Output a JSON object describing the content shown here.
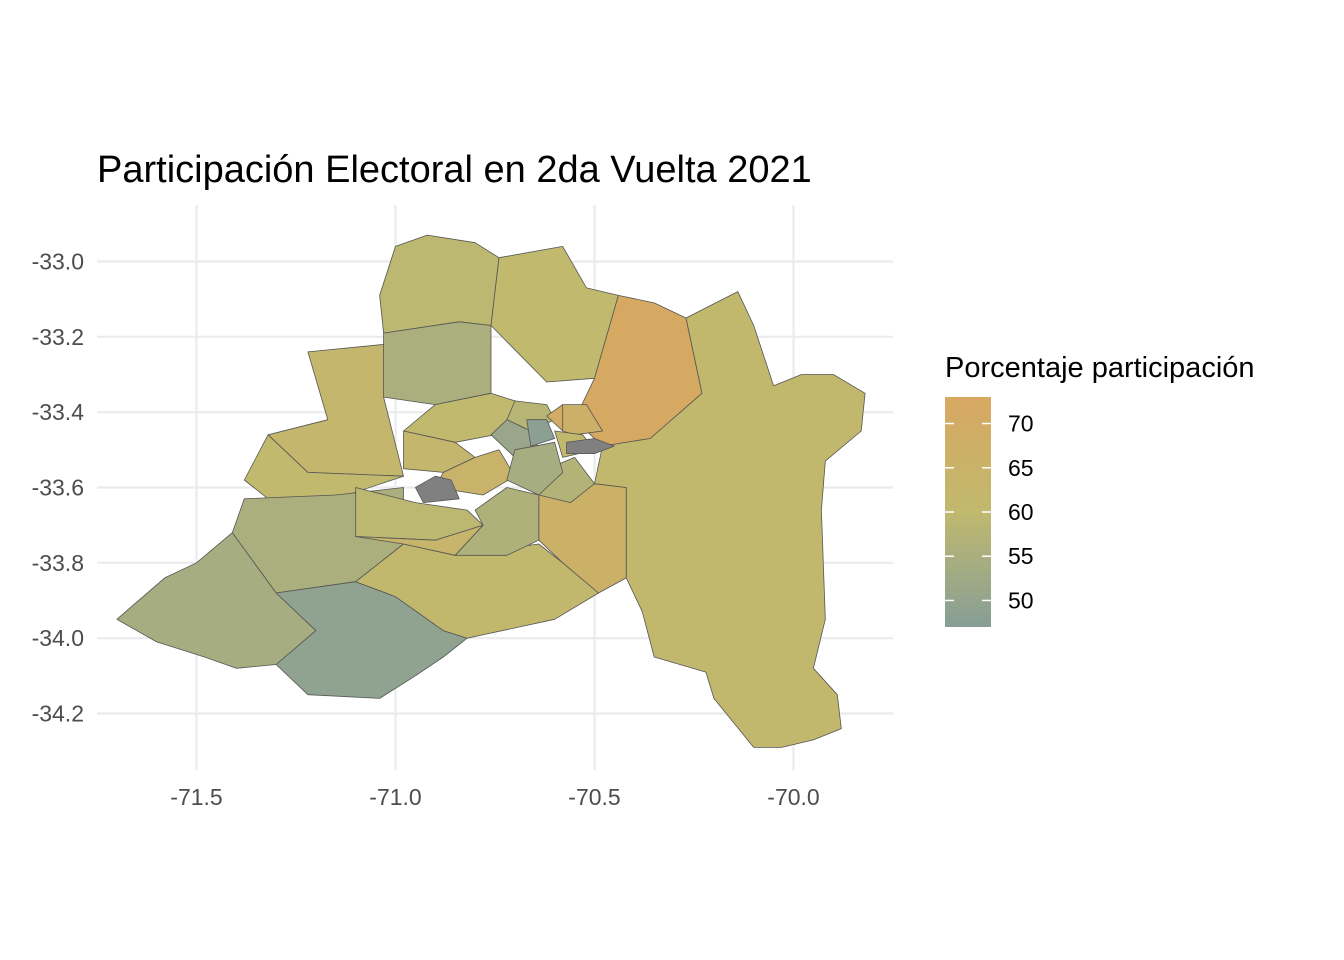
{
  "title": "Participación Electoral en 2da Vuelta 2021",
  "axes": {
    "x_ticks": [
      "-71.5",
      "-71.0",
      "-70.5",
      "-70.0"
    ],
    "y_ticks": [
      "-33.0",
      "-33.2",
      "-33.4",
      "-33.6",
      "-33.8",
      "-34.0",
      "-34.2"
    ]
  },
  "legend": {
    "title": "Porcentaje participación",
    "ticks": [
      "70",
      "65",
      "60",
      "55",
      "50"
    ]
  },
  "colors": {
    "scale_high": "#d8a862",
    "scale_mid": "#c0b96e",
    "scale_low": "#879e96",
    "missing": "#808080",
    "border": "#555555",
    "grid": "#ebebeb"
  },
  "map_data": {
    "crs": "lon/lat",
    "xlim": [
      -71.75,
      -69.75
    ],
    "ylim": [
      -34.35,
      -32.85
    ],
    "fill_range": [
      47,
      73
    ],
    "regions": [
      {
        "id": "north-west",
        "value": 59,
        "poly": [
          [
            -71.04,
            -33.09
          ],
          [
            -71.0,
            -32.96
          ],
          [
            -70.92,
            -32.93
          ],
          [
            -70.8,
            -32.95
          ],
          [
            -70.74,
            -32.99
          ],
          [
            -70.76,
            -33.17
          ],
          [
            -70.84,
            -33.16
          ],
          [
            -71.03,
            -33.19
          ]
        ]
      },
      {
        "id": "north-center",
        "value": 60,
        "poly": [
          [
            -70.74,
            -32.99
          ],
          [
            -70.58,
            -32.96
          ],
          [
            -70.52,
            -33.07
          ],
          [
            -70.44,
            -33.09
          ],
          [
            -70.5,
            -33.31
          ],
          [
            -70.62,
            -33.32
          ],
          [
            -70.76,
            -33.17
          ]
        ]
      },
      {
        "id": "north-east",
        "value": 72,
        "poly": [
          [
            -70.44,
            -33.09
          ],
          [
            -70.35,
            -33.11
          ],
          [
            -70.27,
            -33.15
          ],
          [
            -70.23,
            -33.35
          ],
          [
            -70.36,
            -33.47
          ],
          [
            -70.48,
            -33.49
          ],
          [
            -70.55,
            -33.42
          ],
          [
            -70.5,
            -33.31
          ]
        ]
      },
      {
        "id": "colina-west",
        "value": 55,
        "poly": [
          [
            -71.03,
            -33.19
          ],
          [
            -70.84,
            -33.16
          ],
          [
            -70.76,
            -33.17
          ],
          [
            -70.76,
            -33.35
          ],
          [
            -70.9,
            -33.38
          ],
          [
            -71.03,
            -33.36
          ]
        ]
      },
      {
        "id": "west-upper",
        "value": 62,
        "poly": [
          [
            -71.22,
            -33.24
          ],
          [
            -71.03,
            -33.22
          ],
          [
            -71.03,
            -33.36
          ],
          [
            -70.98,
            -33.57
          ],
          [
            -71.22,
            -33.56
          ],
          [
            -71.32,
            -33.46
          ],
          [
            -71.17,
            -33.42
          ]
        ]
      },
      {
        "id": "west-mid",
        "value": 60,
        "poly": [
          [
            -71.32,
            -33.46
          ],
          [
            -71.22,
            -33.56
          ],
          [
            -70.98,
            -33.57
          ],
          [
            -71.15,
            -33.63
          ],
          [
            -71.32,
            -33.63
          ],
          [
            -71.38,
            -33.58
          ]
        ]
      },
      {
        "id": "west-large",
        "value": 55,
        "poly": [
          [
            -71.38,
            -33.63
          ],
          [
            -71.15,
            -33.62
          ],
          [
            -70.98,
            -33.6
          ],
          [
            -70.98,
            -33.75
          ],
          [
            -71.1,
            -33.85
          ],
          [
            -71.3,
            -33.88
          ],
          [
            -71.41,
            -33.72
          ]
        ]
      },
      {
        "id": "south-west",
        "value": 54,
        "poly": [
          [
            -71.41,
            -33.72
          ],
          [
            -71.3,
            -33.88
          ],
          [
            -71.2,
            -33.98
          ],
          [
            -71.3,
            -34.07
          ],
          [
            -71.4,
            -34.08
          ],
          [
            -71.48,
            -34.05
          ],
          [
            -71.6,
            -34.01
          ],
          [
            -71.7,
            -33.95
          ],
          [
            -71.58,
            -33.84
          ],
          [
            -71.5,
            -33.8
          ]
        ]
      },
      {
        "id": "south-center",
        "value": 49,
        "poly": [
          [
            -71.3,
            -33.88
          ],
          [
            -71.1,
            -33.85
          ],
          [
            -71.0,
            -33.89
          ],
          [
            -70.88,
            -33.98
          ],
          [
            -70.82,
            -34.0
          ],
          [
            -70.88,
            -34.05
          ],
          [
            -70.95,
            -34.1
          ],
          [
            -71.04,
            -34.16
          ],
          [
            -71.22,
            -34.15
          ],
          [
            -71.3,
            -34.07
          ],
          [
            -71.2,
            -33.98
          ]
        ]
      },
      {
        "id": "south-mid",
        "value": 61,
        "poly": [
          [
            -71.1,
            -33.85
          ],
          [
            -70.98,
            -33.75
          ],
          [
            -70.85,
            -33.78
          ],
          [
            -70.64,
            -33.75
          ],
          [
            -70.58,
            -33.8
          ],
          [
            -70.49,
            -33.88
          ],
          [
            -70.6,
            -33.95
          ],
          [
            -70.82,
            -34.0
          ],
          [
            -70.88,
            -33.98
          ],
          [
            -71.0,
            -33.89
          ]
        ]
      },
      {
        "id": "pirque",
        "value": 66,
        "poly": [
          [
            -70.64,
            -33.62
          ],
          [
            -70.5,
            -33.59
          ],
          [
            -70.42,
            -33.6
          ],
          [
            -70.42,
            -33.84
          ],
          [
            -70.49,
            -33.88
          ],
          [
            -70.58,
            -33.8
          ],
          [
            -70.64,
            -33.74
          ]
        ]
      },
      {
        "id": "east-large",
        "value": 61,
        "poly": [
          [
            -70.48,
            -33.49
          ],
          [
            -70.36,
            -33.47
          ],
          [
            -70.23,
            -33.35
          ],
          [
            -70.27,
            -33.15
          ],
          [
            -70.14,
            -33.08
          ],
          [
            -70.1,
            -33.17
          ],
          [
            -70.05,
            -33.33
          ],
          [
            -69.98,
            -33.3
          ],
          [
            -69.9,
            -33.3
          ],
          [
            -69.82,
            -33.35
          ],
          [
            -69.83,
            -33.45
          ],
          [
            -69.92,
            -33.53
          ],
          [
            -69.93,
            -33.66
          ],
          [
            -69.92,
            -33.95
          ],
          [
            -69.95,
            -34.08
          ],
          [
            -69.89,
            -34.15
          ],
          [
            -69.88,
            -34.24
          ],
          [
            -69.95,
            -34.27
          ],
          [
            -70.03,
            -34.29
          ],
          [
            -70.1,
            -34.29
          ],
          [
            -70.2,
            -34.16
          ],
          [
            -70.22,
            -34.09
          ],
          [
            -70.35,
            -34.05
          ],
          [
            -70.38,
            -33.93
          ],
          [
            -70.42,
            -33.84
          ],
          [
            -70.42,
            -33.6
          ],
          [
            -70.5,
            -33.59
          ]
        ]
      },
      {
        "id": "lampa-south",
        "value": 60,
        "poly": [
          [
            -70.9,
            -33.38
          ],
          [
            -70.76,
            -33.35
          ],
          [
            -70.64,
            -33.39
          ],
          [
            -70.7,
            -33.45
          ],
          [
            -70.85,
            -33.48
          ],
          [
            -70.98,
            -33.45
          ]
        ]
      },
      {
        "id": "renca",
        "value": 62,
        "poly": [
          [
            -70.98,
            -33.45
          ],
          [
            -70.85,
            -33.48
          ],
          [
            -70.8,
            -33.52
          ],
          [
            -70.88,
            -33.56
          ],
          [
            -70.98,
            -33.55
          ]
        ]
      },
      {
        "id": "maipu",
        "value": 65,
        "poly": [
          [
            -70.88,
            -33.56
          ],
          [
            -70.8,
            -33.52
          ],
          [
            -70.74,
            -33.5
          ],
          [
            -70.7,
            -33.57
          ],
          [
            -70.78,
            -33.62
          ],
          [
            -70.9,
            -33.6
          ]
        ]
      },
      {
        "id": "padre-hurtado",
        "value": 59,
        "poly": [
          [
            -71.1,
            -33.6
          ],
          [
            -70.95,
            -33.64
          ],
          [
            -70.82,
            -33.66
          ],
          [
            -70.78,
            -33.7
          ],
          [
            -70.9,
            -33.74
          ],
          [
            -71.1,
            -33.73
          ]
        ]
      },
      {
        "id": "calera",
        "value": 63,
        "poly": [
          [
            -71.1,
            -33.73
          ],
          [
            -70.9,
            -33.74
          ],
          [
            -70.78,
            -33.7
          ],
          [
            -70.85,
            -33.78
          ],
          [
            -70.98,
            -33.75
          ]
        ]
      },
      {
        "id": "san-bernardo",
        "value": 56,
        "poly": [
          [
            -70.8,
            -33.66
          ],
          [
            -70.72,
            -33.6
          ],
          [
            -70.64,
            -33.62
          ],
          [
            -70.64,
            -33.74
          ],
          [
            -70.72,
            -33.78
          ],
          [
            -70.85,
            -33.78
          ],
          [
            -70.78,
            -33.7
          ]
        ]
      },
      {
        "id": "puente-alto",
        "value": 57,
        "poly": [
          [
            -70.64,
            -33.56
          ],
          [
            -70.55,
            -33.52
          ],
          [
            -70.5,
            -33.59
          ],
          [
            -70.56,
            -33.64
          ],
          [
            -70.64,
            -33.62
          ]
        ]
      },
      {
        "id": "center-north",
        "value": 58,
        "poly": [
          [
            -70.7,
            -33.37
          ],
          [
            -70.62,
            -33.38
          ],
          [
            -70.6,
            -33.42
          ],
          [
            -70.66,
            -33.45
          ],
          [
            -70.72,
            -33.42
          ]
        ]
      },
      {
        "id": "center-west",
        "value": 51,
        "poly": [
          [
            -70.72,
            -33.42
          ],
          [
            -70.66,
            -33.45
          ],
          [
            -70.64,
            -33.5
          ],
          [
            -70.7,
            -33.52
          ],
          [
            -70.76,
            -33.46
          ]
        ]
      },
      {
        "id": "santiago-centro",
        "value": 48,
        "poly": [
          [
            -70.67,
            -33.42
          ],
          [
            -70.62,
            -33.42
          ],
          [
            -70.6,
            -33.47
          ],
          [
            -70.66,
            -33.49
          ]
        ]
      },
      {
        "id": "center-south",
        "value": 54,
        "poly": [
          [
            -70.7,
            -33.5
          ],
          [
            -70.6,
            -33.48
          ],
          [
            -70.58,
            -33.56
          ],
          [
            -70.64,
            -33.62
          ],
          [
            -70.72,
            -33.58
          ]
        ]
      },
      {
        "id": "providencia",
        "value": 70,
        "poly": [
          [
            -70.62,
            -33.41
          ],
          [
            -70.58,
            -33.38
          ],
          [
            -70.55,
            -33.41
          ],
          [
            -70.58,
            -33.45
          ]
        ]
      },
      {
        "id": "las-condes",
        "value": 66,
        "poly": [
          [
            -70.58,
            -33.38
          ],
          [
            -70.52,
            -33.38
          ],
          [
            -70.48,
            -33.45
          ],
          [
            -70.55,
            -33.46
          ],
          [
            -70.58,
            -33.45
          ]
        ]
      },
      {
        "id": "nunoa",
        "value": 61,
        "poly": [
          [
            -70.6,
            -33.45
          ],
          [
            -70.53,
            -33.46
          ],
          [
            -70.5,
            -33.5
          ],
          [
            -70.58,
            -33.52
          ]
        ]
      },
      {
        "id": "na-east",
        "value": null,
        "poly": [
          [
            -70.57,
            -33.48
          ],
          [
            -70.5,
            -33.47
          ],
          [
            -70.45,
            -33.49
          ],
          [
            -70.5,
            -33.51
          ],
          [
            -70.57,
            -33.51
          ]
        ]
      },
      {
        "id": "na-west",
        "value": null,
        "poly": [
          [
            -70.95,
            -33.6
          ],
          [
            -70.9,
            -33.57
          ],
          [
            -70.86,
            -33.58
          ],
          [
            -70.84,
            -33.63
          ],
          [
            -70.93,
            -33.64
          ]
        ]
      }
    ]
  }
}
